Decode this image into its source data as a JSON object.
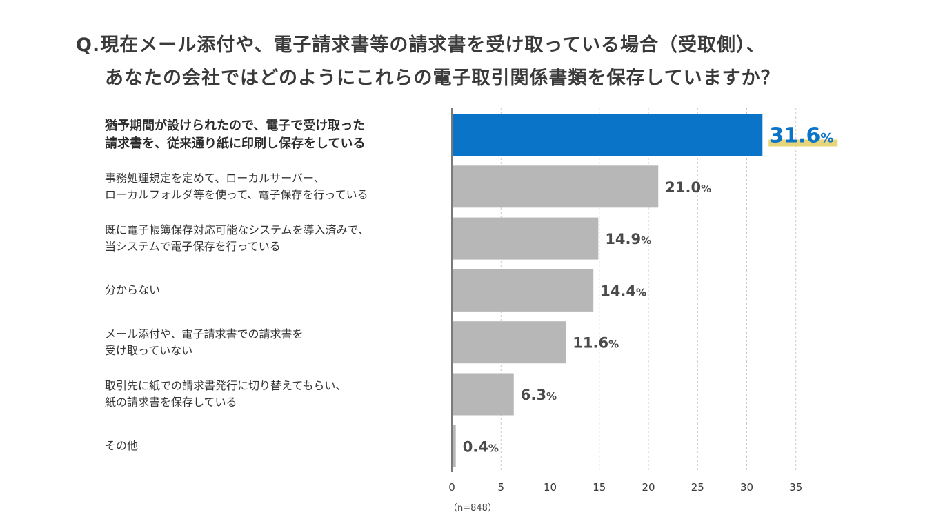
{
  "title": {
    "line1": "Q.現在メール添付や、電子請求書等の請求書を受け取っている場合（受取側）、",
    "line2": "あなたの会社ではどのようにこれらの電子取引関係書類を保存していますか？"
  },
  "sample_note": "（n=848）",
  "colors": {
    "highlight": "#0a74c8",
    "bar": "#b7b7b7",
    "underline": "#e8d57a"
  },
  "chart_data": {
    "type": "bar",
    "orientation": "horizontal",
    "categories": [
      "猶予期間が設けられたので、電子で受け取った\n請求書を、従来通り紙に印刷し保存をしている",
      "事務処理規定を定めて、ローカルサーバー、\nローカルフォルダ等を使って、電子保存を行っている",
      "既に電子帳簿保存対応可能なシステムを導入済みで、\n当システムで電子保存を行っている",
      "分からない",
      "メール添付や、電子請求書での請求書を\n受け取っていない",
      "取引先に紙での請求書発行に切り替えてもらい、\n紙の請求書を保存している",
      "その他"
    ],
    "values": [
      31.6,
      21.0,
      14.9,
      14.4,
      11.6,
      6.3,
      0.4
    ],
    "value_labels": [
      "31.6",
      "21.0",
      "14.9",
      "14.4",
      "11.6",
      "6.3",
      "0.4"
    ],
    "unit": "%",
    "highlight_index": 0,
    "xlim": [
      0,
      35
    ],
    "xticks": [
      0,
      5,
      10,
      15,
      20,
      25,
      30,
      35
    ],
    "grid": true,
    "xlabel": "",
    "ylabel": ""
  }
}
